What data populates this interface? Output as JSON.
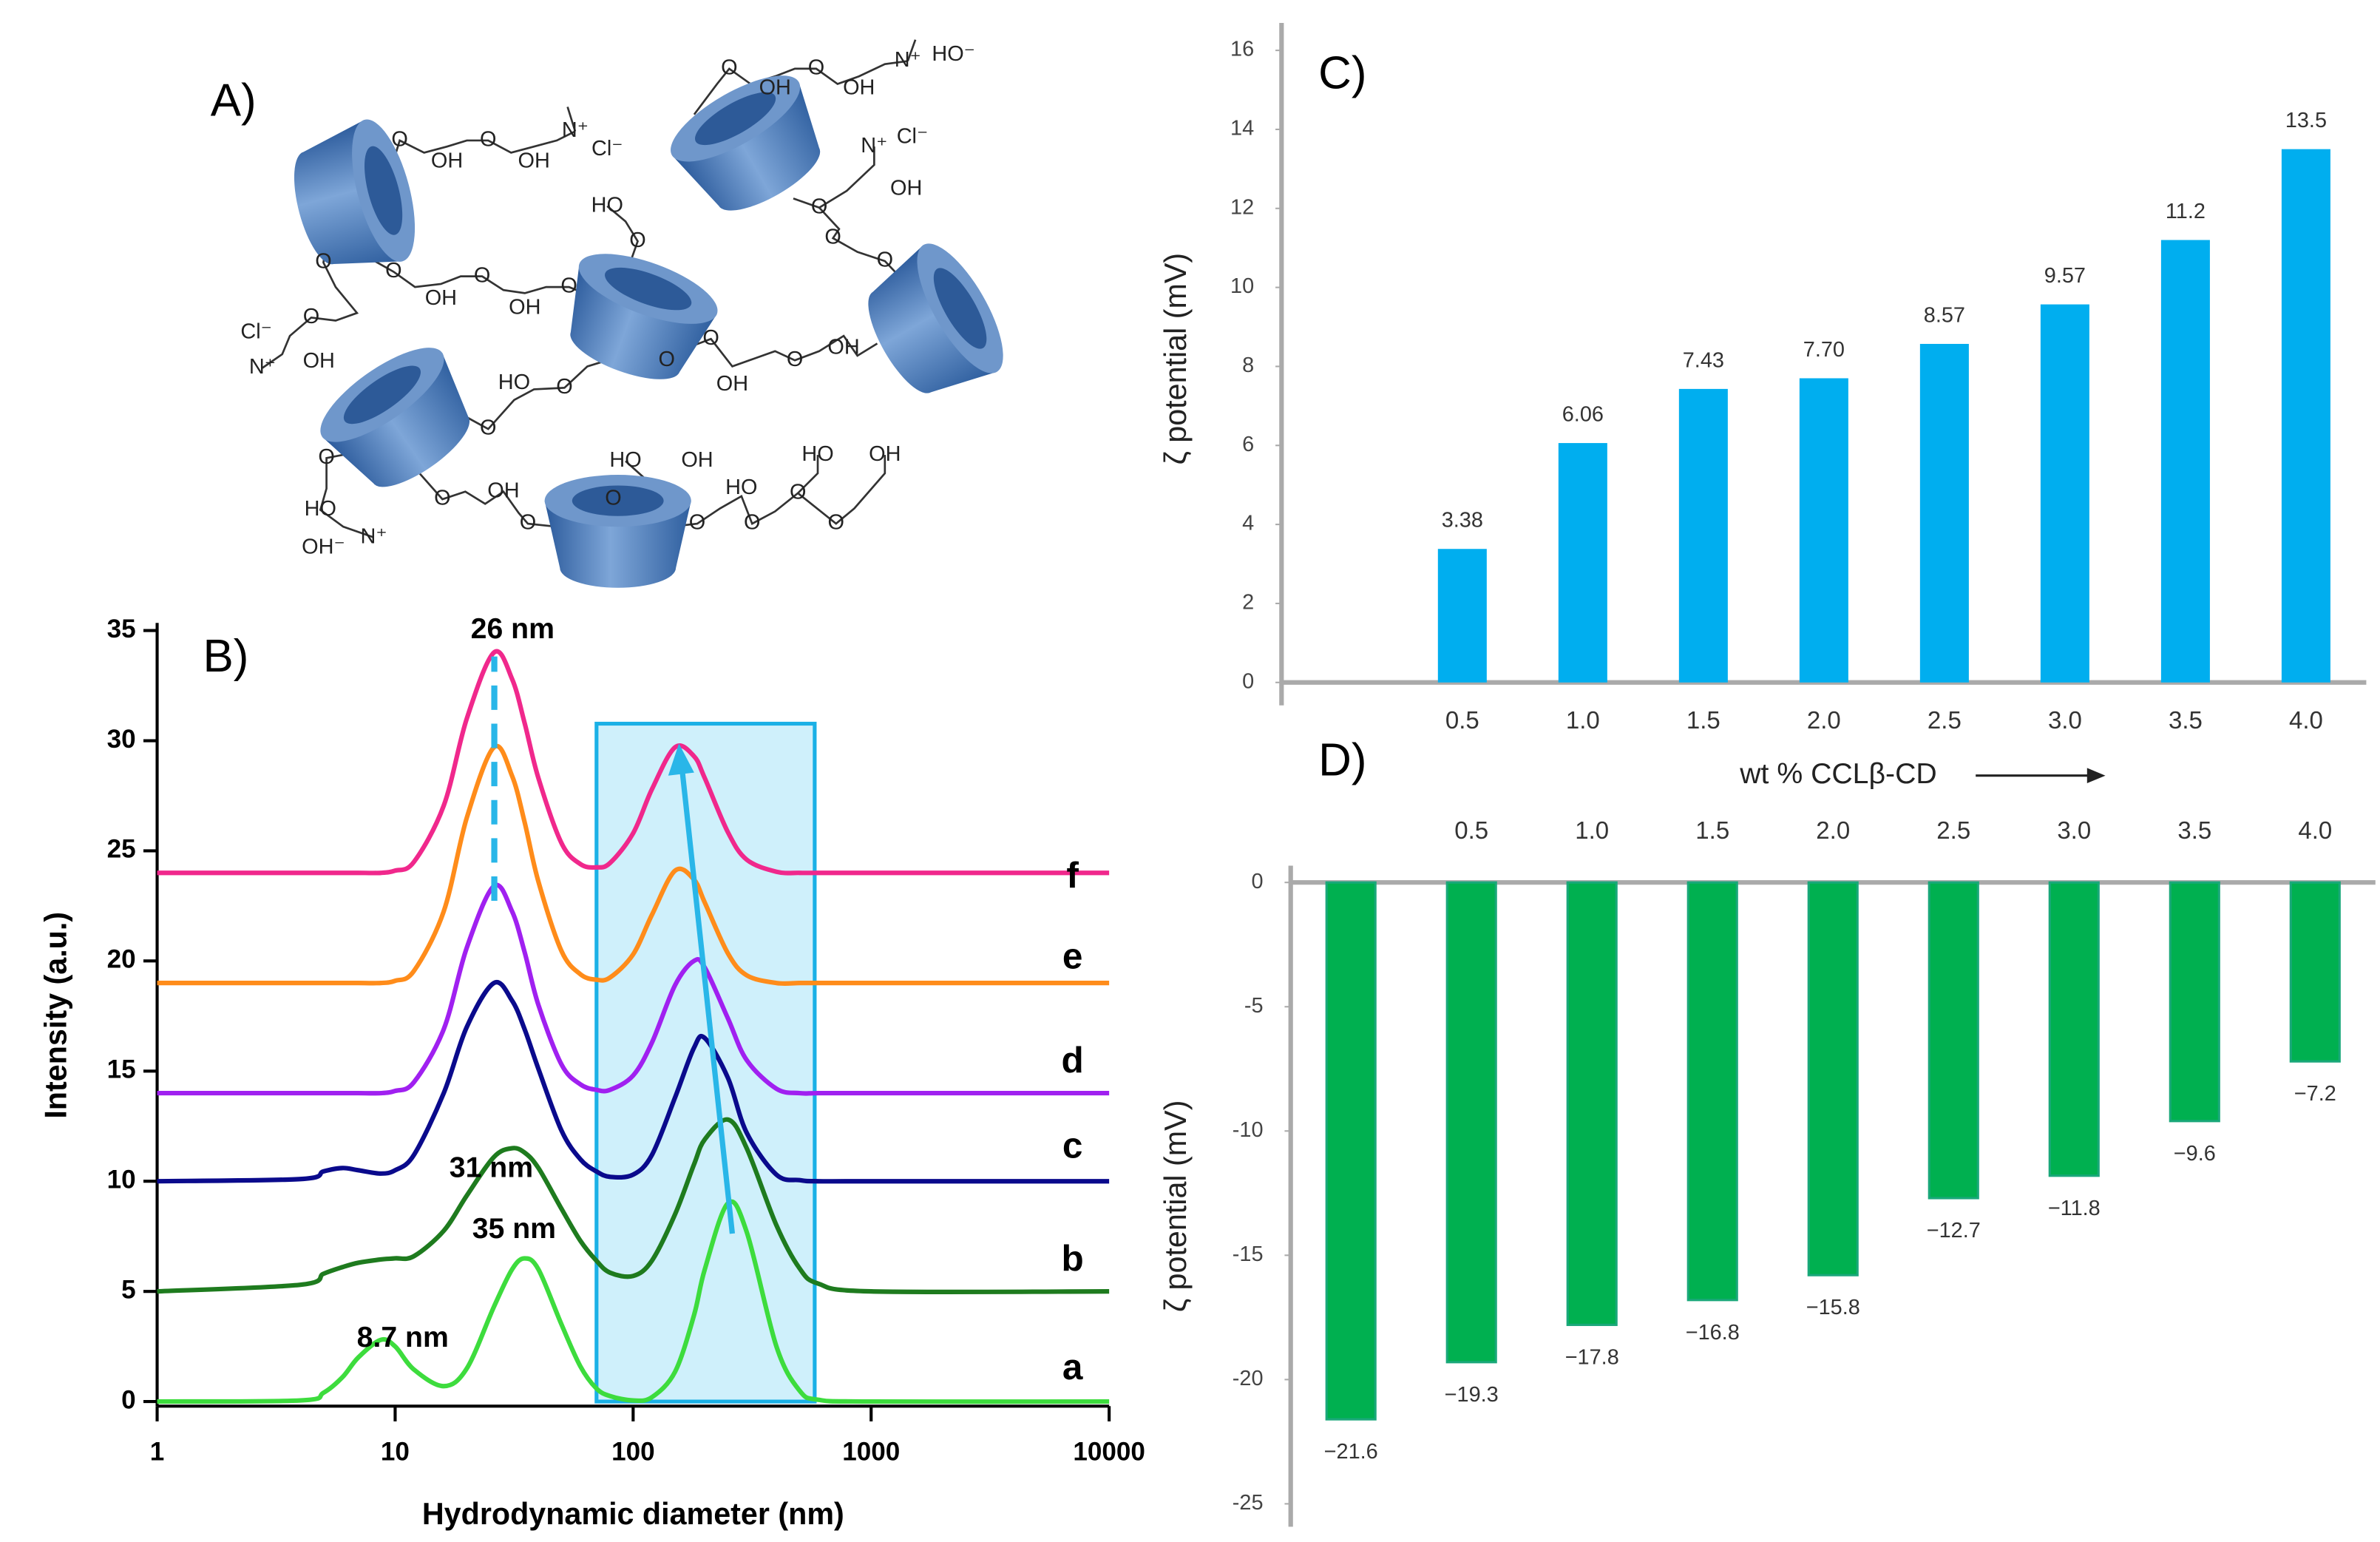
{
  "structure": {
    "title": "A)",
    "labels": [
      "O",
      "OH",
      "O",
      "OH",
      "N⁺",
      "HO⁻",
      "O",
      "OH",
      "O",
      "OH",
      "N⁺",
      "Cl⁻",
      "N⁺",
      "Cl⁻",
      "OH",
      "O",
      "HO",
      "O",
      "O",
      "OH",
      "O",
      "OH",
      "O",
      "O",
      "O",
      "O",
      "Cl⁻",
      "O",
      "OH",
      "N⁺",
      "O",
      "O",
      "OH",
      "O",
      "OH",
      "HO",
      "O",
      "O",
      "O",
      "HO",
      "OH⁻",
      "N⁺",
      "O",
      "OH",
      "O",
      "HO",
      "OH",
      "O",
      "HO",
      "O",
      "O",
      "HO",
      "OH",
      "O",
      "O"
    ]
  },
  "chart_data": [
    {
      "type": "line",
      "title": "B)",
      "x_label": "Hydrodynamic diameter (nm)",
      "y_label": "Intensity (a.u.)",
      "xscale": "log",
      "xlim": [
        1,
        10000
      ],
      "xticks": [
        1,
        10,
        100,
        1000,
        10000
      ],
      "ylim": [
        0,
        35
      ],
      "yticks": [
        0,
        5,
        10,
        15,
        20,
        25,
        30,
        35
      ],
      "annotations": [
        "26 nm",
        "31 nm",
        "35 nm",
        "8.7 nm"
      ],
      "x": [
        1,
        4,
        5,
        6,
        7,
        8.7,
        10,
        12,
        16,
        20,
        26,
        31,
        35,
        40,
        50,
        60,
        70,
        80,
        100,
        120,
        150,
        180,
        200,
        250,
        300,
        400,
        500,
        600,
        1000,
        10000
      ],
      "series": [
        {
          "name": "a",
          "color": "#3ddc3d",
          "values": [
            0,
            0.05,
            0.4,
            1.1,
            2.0,
            2.8,
            2.5,
            1.45,
            0.7,
            1.5,
            4.3,
            6.0,
            6.5,
            6.0,
            3.5,
            1.6,
            0.6,
            0.25,
            0.05,
            0.2,
            1.35,
            3.9,
            6.0,
            9.0,
            7.7,
            2.5,
            0.5,
            0.08,
            0,
            0
          ]
        },
        {
          "name": "b",
          "color": "#1e7b1e",
          "values": [
            5,
            5.3,
            5.8,
            6.1,
            6.3,
            6.45,
            6.5,
            6.6,
            7.75,
            9.35,
            11.1,
            11.5,
            11.3,
            10.6,
            8.75,
            7.3,
            6.4,
            5.85,
            5.7,
            6.4,
            8.5,
            10.75,
            11.9,
            12.8,
            11.5,
            8.0,
            6.05,
            5.35,
            5,
            5
          ]
        },
        {
          "name": "c",
          "color": "#0a0a8c",
          "values": [
            10,
            10.1,
            10.45,
            10.6,
            10.5,
            10.35,
            10.5,
            11.2,
            14.0,
            17.0,
            19.0,
            18.2,
            16.9,
            15.1,
            12.3,
            11.0,
            10.45,
            10.2,
            10.3,
            11.2,
            13.8,
            16.05,
            16.5,
            14.7,
            12.2,
            10.3,
            10.05,
            10,
            10,
            10
          ]
        },
        {
          "name": "d",
          "color": "#a020f0",
          "values": [
            14,
            14,
            14,
            14,
            14,
            14,
            14.1,
            14.5,
            16.9,
            20.6,
            23.4,
            22.25,
            20.4,
            18.0,
            15.3,
            14.4,
            14.15,
            14.15,
            14.8,
            16.3,
            18.9,
            20,
            19.7,
            17.4,
            15.5,
            14.2,
            14,
            14,
            14,
            14
          ]
        },
        {
          "name": "e",
          "color": "#ff8c1a",
          "values": [
            19,
            19,
            19,
            19,
            19,
            19,
            19.1,
            19.55,
            22.25,
            26.5,
            29.7,
            28.4,
            26.3,
            23.6,
            20.45,
            19.4,
            19.15,
            19.25,
            20.3,
            22.1,
            24.1,
            23.7,
            22.65,
            20.35,
            19.35,
            19,
            19,
            19,
            19,
            19
          ]
        },
        {
          "name": "f",
          "color": "#f0288c",
          "values": [
            24,
            24,
            24,
            24,
            24,
            24,
            24.1,
            24.5,
            27.05,
            31.0,
            34.0,
            32.8,
            30.8,
            28.3,
            25.35,
            24.4,
            24.25,
            24.45,
            25.8,
            27.8,
            29.7,
            29.3,
            28.3,
            25.85,
            24.6,
            24.05,
            24,
            24,
            24,
            24
          ]
        }
      ]
    },
    {
      "type": "bar",
      "title": "C)",
      "x_label": "wt % CCLβ-CD",
      "y_label": "ζ potential (mV)",
      "color": "#00aeef",
      "categories": [
        null,
        "0.5",
        "1.0",
        "1.5",
        "2.0",
        "2.5",
        "3.0",
        "3.5",
        "4.0"
      ],
      "values": [
        null,
        3.38,
        6.06,
        7.43,
        7.7,
        8.57,
        9.57,
        11.2,
        13.5
      ],
      "value_labels": [
        null,
        "3.38",
        "6.06",
        "7.43",
        "7.70",
        "8.57",
        "9.57",
        "11.2",
        "13.5"
      ],
      "ylim": [
        0,
        16
      ],
      "yticks": [
        0,
        2,
        4,
        6,
        8,
        10,
        12,
        14,
        16
      ]
    },
    {
      "type": "bar",
      "title": "D)",
      "y_label": "ζ potential (mV)",
      "color": "#00b050",
      "categories": [
        null,
        "0.5",
        "1.0",
        "1.5",
        "2.0",
        "2.5",
        "3.0",
        "3.5",
        "4.0"
      ],
      "values": [
        -21.6,
        -19.3,
        -17.8,
        -16.8,
        -15.8,
        -12.7,
        -11.8,
        -9.6,
        -7.2
      ],
      "value_labels": [
        "−21.6",
        "−19.3",
        "−17.8",
        "−16.8",
        "−15.8",
        "−12.7",
        "−11.8",
        "−9.6",
        "−7.2"
      ],
      "ylim": [
        -25,
        0
      ],
      "yticks": [
        0,
        -5,
        -10,
        -15,
        -20,
        -25
      ]
    }
  ]
}
